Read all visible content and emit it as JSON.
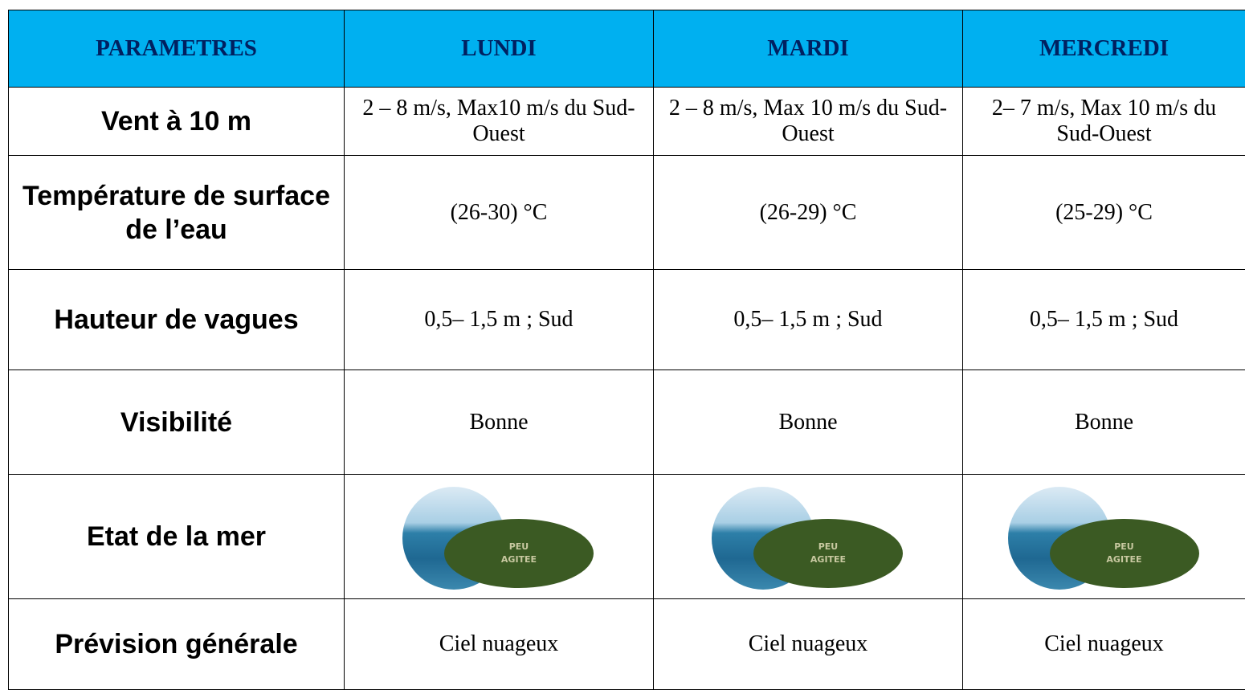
{
  "table": {
    "header": [
      "PARAMETRES",
      "LUNDI",
      "MARDI",
      "MERCREDI"
    ],
    "rows": [
      {
        "label": "Vent à 10 m",
        "cells": [
          "2 – 8 m/s, Max10 m/s du Sud-Ouest",
          "2 – 8 m/s, Max 10 m/s du Sud-Ouest",
          "2– 7 m/s, Max 10 m/s du Sud-Ouest"
        ]
      },
      {
        "label": "Température de surface de l’eau",
        "cells": [
          "(26-30) °C",
          "(26-29) °C",
          "(25-29) °C"
        ]
      },
      {
        "label": "Hauteur de vagues",
        "cells": [
          "0,5– 1,5 m ; Sud",
          "0,5– 1,5 m ; Sud",
          "0,5– 1,5 m ; Sud"
        ]
      },
      {
        "label": "Visibilité",
        "cells": [
          "Bonne",
          "Bonne",
          "Bonne"
        ]
      },
      {
        "label": "Etat de la mer",
        "cells": [
          "PEU AGITEE",
          "PEU AGITEE",
          "PEU AGITEE"
        ]
      },
      {
        "label": "Prévision générale",
        "cells": [
          "Ciel nuageux",
          "Ciel nuageux",
          "Ciel nuageux"
        ]
      }
    ]
  }
}
